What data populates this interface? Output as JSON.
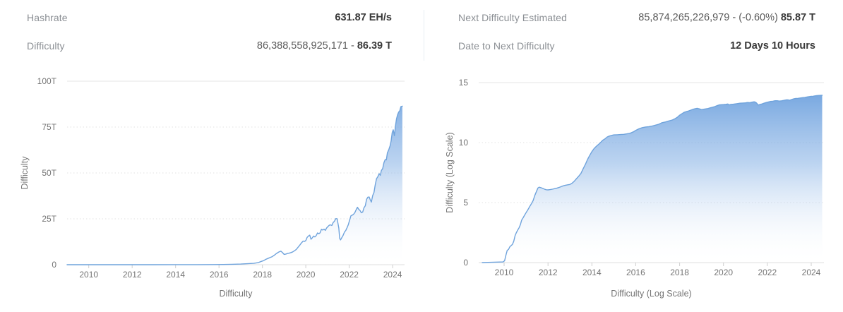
{
  "stats": {
    "hashrate": {
      "label": "Hashrate",
      "value_prefix": "",
      "value_strong": "631.87 EH/s"
    },
    "difficulty": {
      "label": "Difficulty",
      "value_prefix": "86,388,558,925,171 - ",
      "value_strong": "86.39 T"
    },
    "next_difficulty": {
      "label": "Next Difficulty Estimated",
      "value_prefix": "85,874,265,226,979 - (-0.60%) ",
      "value_strong": "85.87 T"
    },
    "date_to_next": {
      "label": "Date to Next Difficulty",
      "value_prefix": "",
      "value_strong": "12 Days 10 Hours"
    }
  },
  "chart_data": [
    {
      "id": "difficulty-linear",
      "type": "area",
      "title": "",
      "xlabel": "Difficulty",
      "ylabel": "Difficulty",
      "unit": "T (trillions of difficulty)",
      "xlim": [
        2009.0,
        2024.55
      ],
      "ylim": [
        0,
        100
      ],
      "grid": "horizontal-dotted",
      "legend": "none",
      "colors": {
        "line": "#6fa3dc",
        "fill_top": "#639adb",
        "fill_mid": "#8fb7e7"
      },
      "xticks": [
        {
          "value": 2010,
          "label": "2010"
        },
        {
          "value": 2012,
          "label": "2012"
        },
        {
          "value": 2014,
          "label": "2014"
        },
        {
          "value": 2016,
          "label": "2016"
        },
        {
          "value": 2018,
          "label": "2018"
        },
        {
          "value": 2020,
          "label": "2020"
        },
        {
          "value": 2022,
          "label": "2022"
        },
        {
          "value": 2024,
          "label": "2024"
        }
      ],
      "yticks": [
        {
          "value": 0,
          "label": "0"
        },
        {
          "value": 25,
          "label": "25T"
        },
        {
          "value": 50,
          "label": "50T"
        },
        {
          "value": 75,
          "label": "75T"
        },
        {
          "value": 100,
          "label": "100T"
        }
      ],
      "points": [
        [
          2009.0,
          0
        ],
        [
          2013.0,
          0.01
        ],
        [
          2014.0,
          0.03
        ],
        [
          2015.0,
          0.05
        ],
        [
          2015.8,
          0.08
        ],
        [
          2016.2,
          0.13
        ],
        [
          2016.6,
          0.22
        ],
        [
          2017.0,
          0.34
        ],
        [
          2017.3,
          0.52
        ],
        [
          2017.6,
          0.75
        ],
        [
          2017.8,
          1.12
        ],
        [
          2017.95,
          1.8
        ],
        [
          2018.05,
          2.2
        ],
        [
          2018.15,
          2.9
        ],
        [
          2018.25,
          3.4
        ],
        [
          2018.35,
          3.9
        ],
        [
          2018.45,
          4.4
        ],
        [
          2018.55,
          5.2
        ],
        [
          2018.65,
          6.1
        ],
        [
          2018.75,
          6.9
        ],
        [
          2018.85,
          7.4
        ],
        [
          2018.92,
          6.7
        ],
        [
          2019.0,
          5.6
        ],
        [
          2019.08,
          5.8
        ],
        [
          2019.16,
          6.1
        ],
        [
          2019.24,
          6.3
        ],
        [
          2019.32,
          6.6
        ],
        [
          2019.4,
          7.0
        ],
        [
          2019.48,
          7.6
        ],
        [
          2019.56,
          8.3
        ],
        [
          2019.64,
          9.5
        ],
        [
          2019.72,
          10.6
        ],
        [
          2019.8,
          11.9
        ],
        [
          2019.88,
          12.9
        ],
        [
          2019.94,
          12.7
        ],
        [
          2020.0,
          13.1
        ],
        [
          2020.06,
          14.9
        ],
        [
          2020.12,
          15.6
        ],
        [
          2020.18,
          16.1
        ],
        [
          2020.24,
          13.9
        ],
        [
          2020.3,
          14.7
        ],
        [
          2020.36,
          15.6
        ],
        [
          2020.42,
          15.1
        ],
        [
          2020.48,
          15.9
        ],
        [
          2020.54,
          17.3
        ],
        [
          2020.6,
          16.9
        ],
        [
          2020.66,
          17.4
        ],
        [
          2020.72,
          19.3
        ],
        [
          2020.78,
          18.9
        ],
        [
          2020.84,
          19.4
        ],
        [
          2020.9,
          18.7
        ],
        [
          2020.96,
          20.0
        ],
        [
          2021.02,
          20.8
        ],
        [
          2021.08,
          21.5
        ],
        [
          2021.14,
          21.7
        ],
        [
          2021.2,
          21.4
        ],
        [
          2021.26,
          23.0
        ],
        [
          2021.32,
          23.7
        ],
        [
          2021.38,
          25.1
        ],
        [
          2021.44,
          25.0
        ],
        [
          2021.48,
          22.7
        ],
        [
          2021.52,
          19.9
        ],
        [
          2021.56,
          14.4
        ],
        [
          2021.6,
          13.5
        ],
        [
          2021.66,
          14.8
        ],
        [
          2021.72,
          16.0
        ],
        [
          2021.78,
          17.8
        ],
        [
          2021.84,
          18.6
        ],
        [
          2021.9,
          20.1
        ],
        [
          2021.96,
          21.9
        ],
        [
          2022.02,
          24.3
        ],
        [
          2022.08,
          26.7
        ],
        [
          2022.14,
          27.0
        ],
        [
          2022.2,
          27.5
        ],
        [
          2022.26,
          28.4
        ],
        [
          2022.32,
          30.0
        ],
        [
          2022.38,
          31.3
        ],
        [
          2022.44,
          30.2
        ],
        [
          2022.5,
          29.5
        ],
        [
          2022.56,
          28.3
        ],
        [
          2022.62,
          28.7
        ],
        [
          2022.68,
          31.0
        ],
        [
          2022.74,
          32.1
        ],
        [
          2022.8,
          35.6
        ],
        [
          2022.86,
          36.8
        ],
        [
          2022.92,
          36.9
        ],
        [
          2022.97,
          35.4
        ],
        [
          2023.02,
          34.1
        ],
        [
          2023.08,
          37.6
        ],
        [
          2023.14,
          39.4
        ],
        [
          2023.2,
          43.6
        ],
        [
          2023.26,
          46.9
        ],
        [
          2023.32,
          48.0
        ],
        [
          2023.38,
          49.6
        ],
        [
          2023.43,
          48.7
        ],
        [
          2023.48,
          51.3
        ],
        [
          2023.54,
          52.4
        ],
        [
          2023.6,
          55.6
        ],
        [
          2023.66,
          57.3
        ],
        [
          2023.71,
          57.1
        ],
        [
          2023.76,
          61.0
        ],
        [
          2023.82,
          62.6
        ],
        [
          2023.88,
          64.7
        ],
        [
          2023.93,
          67.3
        ],
        [
          2023.98,
          72.0
        ],
        [
          2024.03,
          73.5
        ],
        [
          2024.08,
          70.3
        ],
        [
          2024.13,
          75.6
        ],
        [
          2024.18,
          79.5
        ],
        [
          2024.23,
          81.8
        ],
        [
          2024.28,
          83.2
        ],
        [
          2024.33,
          83.9
        ],
        [
          2024.38,
          86.1
        ],
        [
          2024.45,
          86.4
        ]
      ]
    },
    {
      "id": "difficulty-log",
      "type": "area",
      "title": "",
      "xlabel": "Difficulty (Log Scale)",
      "ylabel": "Difficulty (Log Scale)",
      "unit": "log10(difficulty)",
      "xlim": [
        2008.84,
        2024.58
      ],
      "ylim": [
        0,
        15
      ],
      "grid": "horizontal-dotted",
      "legend": "none",
      "colors": {
        "line": "#6fa3dc",
        "fill_top": "#639adb",
        "fill_mid": "#8fb7e7"
      },
      "xticks": [
        {
          "value": 2010,
          "label": "2010"
        },
        {
          "value": 2012,
          "label": "2012"
        },
        {
          "value": 2014,
          "label": "2014"
        },
        {
          "value": 2016,
          "label": "2016"
        },
        {
          "value": 2018,
          "label": "2018"
        },
        {
          "value": 2020,
          "label": "2020"
        },
        {
          "value": 2022,
          "label": "2022"
        },
        {
          "value": 2024,
          "label": "2024"
        }
      ],
      "yticks": [
        {
          "value": 0,
          "label": "0"
        },
        {
          "value": 5,
          "label": "5"
        },
        {
          "value": 10,
          "label": "10"
        },
        {
          "value": 15,
          "label": "15"
        }
      ],
      "points": [
        [
          2009.0,
          0
        ],
        [
          2009.95,
          0.05
        ],
        [
          2010.02,
          0.15
        ],
        [
          2010.08,
          0.6
        ],
        [
          2010.14,
          1.02
        ],
        [
          2010.2,
          1.1
        ],
        [
          2010.26,
          1.32
        ],
        [
          2010.32,
          1.42
        ],
        [
          2010.38,
          1.52
        ],
        [
          2010.44,
          1.78
        ],
        [
          2010.5,
          2.26
        ],
        [
          2010.56,
          2.5
        ],
        [
          2010.62,
          2.71
        ],
        [
          2010.68,
          2.9
        ],
        [
          2010.74,
          3.15
        ],
        [
          2010.8,
          3.55
        ],
        [
          2010.86,
          3.72
        ],
        [
          2010.92,
          3.91
        ],
        [
          2011.0,
          4.16
        ],
        [
          2011.08,
          4.4
        ],
        [
          2011.16,
          4.65
        ],
        [
          2011.24,
          4.9
        ],
        [
          2011.32,
          5.15
        ],
        [
          2011.4,
          5.6
        ],
        [
          2011.48,
          5.95
        ],
        [
          2011.54,
          6.22
        ],
        [
          2011.6,
          6.28
        ],
        [
          2011.68,
          6.24
        ],
        [
          2011.76,
          6.18
        ],
        [
          2011.84,
          6.12
        ],
        [
          2011.92,
          6.07
        ],
        [
          2012.0,
          6.06
        ],
        [
          2012.1,
          6.08
        ],
        [
          2012.2,
          6.12
        ],
        [
          2012.3,
          6.16
        ],
        [
          2012.4,
          6.2
        ],
        [
          2012.5,
          6.26
        ],
        [
          2012.6,
          6.33
        ],
        [
          2012.7,
          6.4
        ],
        [
          2012.8,
          6.45
        ],
        [
          2012.9,
          6.48
        ],
        [
          2013.0,
          6.51
        ],
        [
          2013.1,
          6.62
        ],
        [
          2013.2,
          6.79
        ],
        [
          2013.3,
          7.0
        ],
        [
          2013.4,
          7.2
        ],
        [
          2013.5,
          7.43
        ],
        [
          2013.6,
          7.81
        ],
        [
          2013.7,
          8.17
        ],
        [
          2013.8,
          8.59
        ],
        [
          2013.9,
          8.93
        ],
        [
          2014.0,
          9.25
        ],
        [
          2014.1,
          9.5
        ],
        [
          2014.2,
          9.68
        ],
        [
          2014.3,
          9.84
        ],
        [
          2014.4,
          10.02
        ],
        [
          2014.5,
          10.2
        ],
        [
          2014.6,
          10.31
        ],
        [
          2014.7,
          10.47
        ],
        [
          2014.8,
          10.55
        ],
        [
          2014.9,
          10.6
        ],
        [
          2015.0,
          10.64
        ],
        [
          2015.15,
          10.65
        ],
        [
          2015.3,
          10.67
        ],
        [
          2015.45,
          10.69
        ],
        [
          2015.6,
          10.73
        ],
        [
          2015.75,
          10.78
        ],
        [
          2015.9,
          10.9
        ],
        [
          2016.0,
          11.02
        ],
        [
          2016.15,
          11.15
        ],
        [
          2016.3,
          11.25
        ],
        [
          2016.45,
          11.3
        ],
        [
          2016.6,
          11.33
        ],
        [
          2016.75,
          11.38
        ],
        [
          2016.9,
          11.45
        ],
        [
          2017.05,
          11.53
        ],
        [
          2017.2,
          11.66
        ],
        [
          2017.35,
          11.72
        ],
        [
          2017.5,
          11.8
        ],
        [
          2017.65,
          11.87
        ],
        [
          2017.8,
          12.0
        ],
        [
          2017.9,
          12.12
        ],
        [
          2018.0,
          12.28
        ],
        [
          2018.1,
          12.4
        ],
        [
          2018.2,
          12.52
        ],
        [
          2018.3,
          12.58
        ],
        [
          2018.4,
          12.63
        ],
        [
          2018.5,
          12.7
        ],
        [
          2018.6,
          12.77
        ],
        [
          2018.7,
          12.82
        ],
        [
          2018.8,
          12.86
        ],
        [
          2018.9,
          12.81
        ],
        [
          2019.0,
          12.75
        ],
        [
          2019.1,
          12.78
        ],
        [
          2019.2,
          12.81
        ],
        [
          2019.3,
          12.84
        ],
        [
          2019.4,
          12.9
        ],
        [
          2019.5,
          12.95
        ],
        [
          2019.6,
          13.0
        ],
        [
          2019.7,
          13.07
        ],
        [
          2019.8,
          13.14
        ],
        [
          2019.9,
          13.16
        ],
        [
          2020.0,
          13.17
        ],
        [
          2020.1,
          13.19
        ],
        [
          2020.2,
          13.22
        ],
        [
          2020.26,
          13.14
        ],
        [
          2020.32,
          13.18
        ],
        [
          2020.45,
          13.2
        ],
        [
          2020.6,
          13.24
        ],
        [
          2020.75,
          13.28
        ],
        [
          2020.9,
          13.3
        ],
        [
          2021.0,
          13.31
        ],
        [
          2021.1,
          13.34
        ],
        [
          2021.2,
          13.33
        ],
        [
          2021.3,
          13.37
        ],
        [
          2021.4,
          13.4
        ],
        [
          2021.47,
          13.36
        ],
        [
          2021.53,
          13.26
        ],
        [
          2021.58,
          13.13
        ],
        [
          2021.65,
          13.17
        ],
        [
          2021.75,
          13.22
        ],
        [
          2021.85,
          13.28
        ],
        [
          2021.95,
          13.34
        ],
        [
          2022.05,
          13.39
        ],
        [
          2022.15,
          13.43
        ],
        [
          2022.25,
          13.45
        ],
        [
          2022.35,
          13.49
        ],
        [
          2022.45,
          13.49
        ],
        [
          2022.55,
          13.46
        ],
        [
          2022.65,
          13.48
        ],
        [
          2022.75,
          13.52
        ],
        [
          2022.85,
          13.56
        ],
        [
          2022.95,
          13.56
        ],
        [
          2023.02,
          13.53
        ],
        [
          2023.1,
          13.59
        ],
        [
          2023.2,
          13.64
        ],
        [
          2023.3,
          13.68
        ],
        [
          2023.4,
          13.69
        ],
        [
          2023.5,
          13.72
        ],
        [
          2023.6,
          13.75
        ],
        [
          2023.7,
          13.76
        ],
        [
          2023.8,
          13.8
        ],
        [
          2023.9,
          13.83
        ],
        [
          2024.0,
          13.86
        ],
        [
          2024.06,
          13.85
        ],
        [
          2024.15,
          13.89
        ],
        [
          2024.25,
          13.91
        ],
        [
          2024.35,
          13.93
        ],
        [
          2024.5,
          13.94
        ]
      ]
    }
  ]
}
